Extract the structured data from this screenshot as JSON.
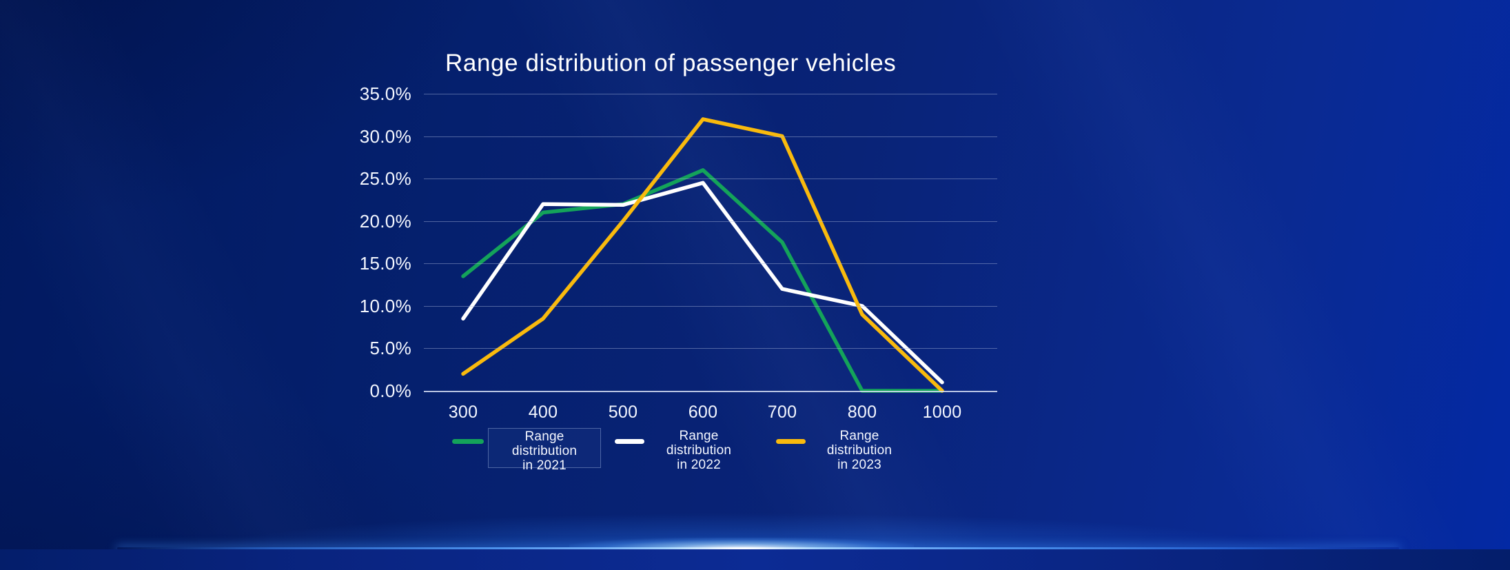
{
  "title": "Range distribution of passenger vehicles",
  "chart_data": {
    "type": "line",
    "title": "Range distribution of passenger vehicles",
    "categories": [
      "300",
      "400",
      "500",
      "600",
      "700",
      "800",
      "1000"
    ],
    "xlabel": "",
    "ylabel": "",
    "ylim": [
      0,
      35
    ],
    "y_tick_labels": [
      "35.0%",
      "30.0%",
      "25.0%",
      "20.0%",
      "15.0%",
      "10.0%",
      "5.0%",
      "0.0%"
    ],
    "grid": "horizontal",
    "legend_position": "bottom",
    "series": [
      {
        "name": "Range distribution in 2021",
        "legend_lines": [
          "Range",
          "distribution",
          "in 2021"
        ],
        "color": "#14a35a",
        "values": [
          13.5,
          21,
          22,
          26,
          17.5,
          0,
          0
        ],
        "legend_highlighted": true
      },
      {
        "name": "Range distribution in 2022",
        "legend_lines": [
          "Range",
          "distribution",
          "in 2022"
        ],
        "color": "#ffffff",
        "values": [
          8.5,
          22,
          21.9,
          24.5,
          12,
          10,
          1
        ],
        "legend_highlighted": false
      },
      {
        "name": "Range distribution in 2023",
        "legend_lines": [
          "Range",
          "distribution",
          "in 2023"
        ],
        "color": "#f9ba0d",
        "values": [
          2,
          8.5,
          20,
          32,
          30,
          9,
          0
        ],
        "legend_highlighted": false
      }
    ]
  },
  "colors": {
    "background_dark": "#01195f",
    "background_bright": "#0329a4",
    "grid_line": "rgba(173,186,222,0.45)",
    "axis_line": "rgba(216,225,246,0.85)",
    "text": "#f4f7ff",
    "horizon_glow": "#2d82ff"
  }
}
